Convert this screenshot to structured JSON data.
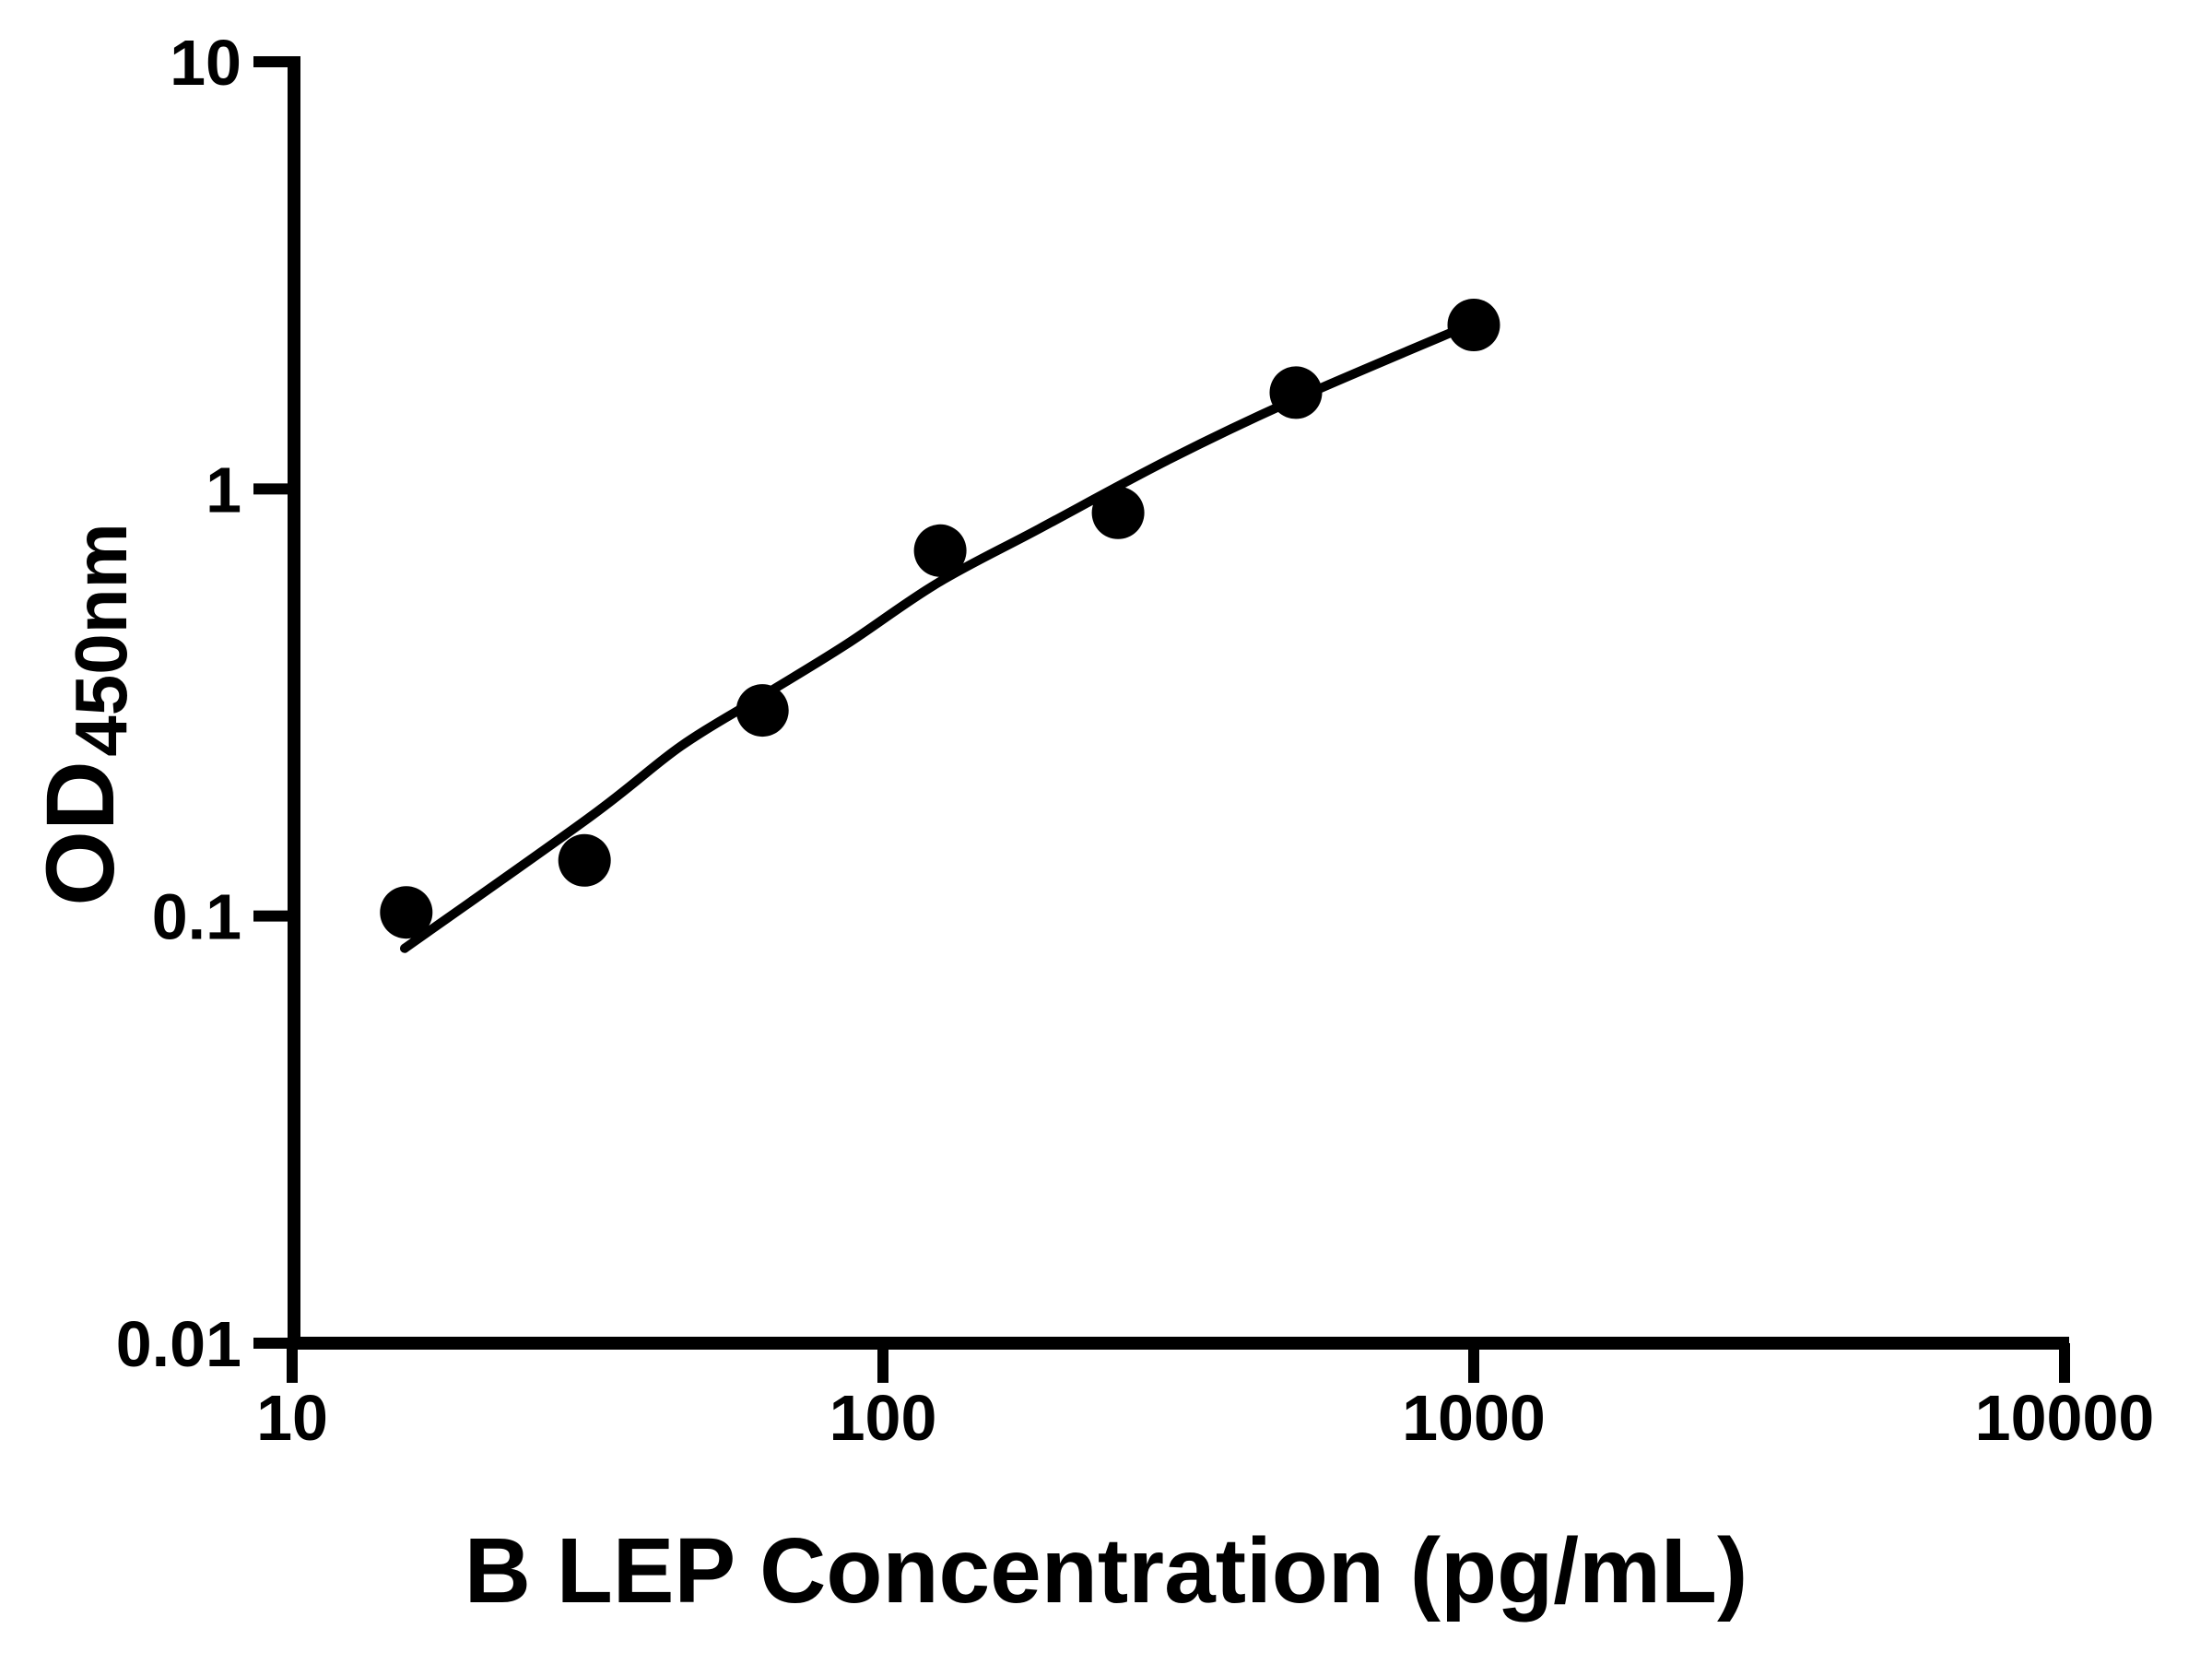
{
  "chart_data": {
    "type": "scatter",
    "title": "",
    "xlabel": "B LEP Concentration (pg/mL)",
    "ylabel_main": "OD",
    "ylabel_sub": "450nm",
    "x_scale": "log",
    "y_scale": "log",
    "xlim": [
      10,
      10000
    ],
    "ylim": [
      0.01,
      10
    ],
    "x_ticks": [
      10,
      100,
      1000,
      10000
    ],
    "x_tick_labels": [
      "10",
      "100",
      "1000",
      "10000"
    ],
    "y_ticks": [
      10,
      1,
      0.1,
      0.01
    ],
    "y_tick_labels": [
      "10",
      "1",
      "0.1",
      "0.01"
    ],
    "grid": false,
    "legend": false,
    "series": [
      {
        "name": "standard-points",
        "kind": "scatter",
        "marker": "filled-circle",
        "points": [
          [
            15.6,
            0.102
          ],
          [
            31.25,
            0.135
          ],
          [
            62.5,
            0.303
          ],
          [
            125,
            0.717
          ],
          [
            250,
            0.879
          ],
          [
            500,
            1.68
          ],
          [
            1000,
            2.42
          ]
        ]
      },
      {
        "name": "fitted-standard-curve",
        "kind": "line",
        "points": [
          [
            15.5,
            0.084
          ],
          [
            32,
            0.171
          ],
          [
            45.5,
            0.25
          ],
          [
            62.4,
            0.327
          ],
          [
            86.6,
            0.432
          ],
          [
            123.7,
            0.602
          ],
          [
            184,
            0.807
          ],
          [
            303,
            1.167
          ],
          [
            494,
            1.612
          ],
          [
            984,
            2.423
          ]
        ]
      }
    ],
    "colors": {
      "points": "#000000",
      "curve": "#000000",
      "axes": "#000000",
      "background": "#ffffff"
    }
  }
}
